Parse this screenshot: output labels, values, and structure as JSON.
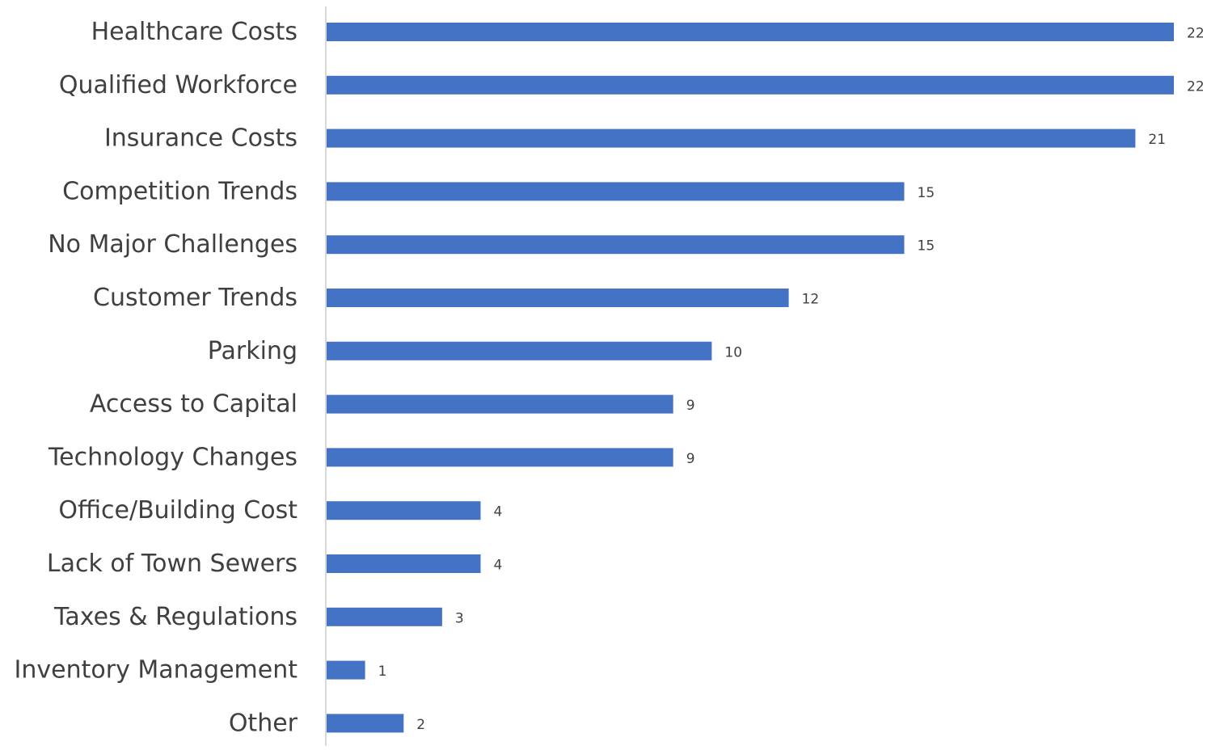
{
  "chart_data": {
    "type": "bar",
    "orientation": "horizontal",
    "title": "",
    "xlabel": "",
    "ylabel": "",
    "grid": false,
    "legend": "none",
    "xlim": [
      0,
      22
    ],
    "bar_color": "#4472C4",
    "axis_color": "#D9D9D9",
    "text_color": "#404040",
    "categories": [
      "Healthcare Costs",
      "Qualified Workforce",
      "Insurance Costs",
      "Competition Trends",
      "No Major Challenges",
      "Customer Trends",
      "Parking",
      "Access to Capital",
      "Technology Changes",
      "Office/Building Cost",
      "Lack of Town Sewers",
      "Taxes & Regulations",
      "Inventory Management",
      "Other"
    ],
    "values": [
      22,
      22,
      21,
      15,
      15,
      12,
      10,
      9,
      9,
      4,
      4,
      3,
      1,
      2
    ],
    "data_labels": [
      "22",
      "22",
      "21",
      "15",
      "15",
      "12",
      "10",
      "9",
      "9",
      "4",
      "4",
      "3",
      "1",
      "2"
    ]
  }
}
